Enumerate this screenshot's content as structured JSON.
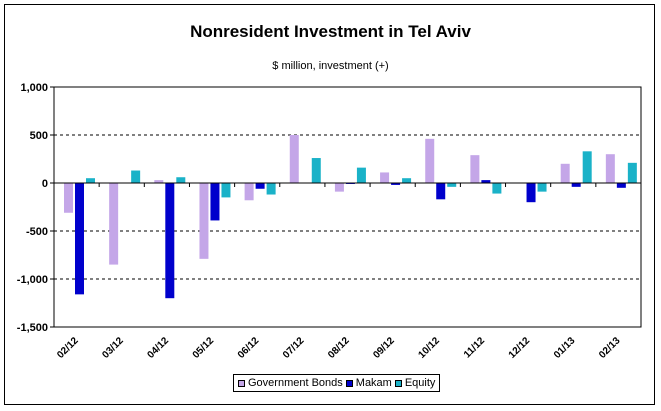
{
  "chart_data": {
    "type": "bar",
    "title": "Nonresident Investment in Tel Aviv",
    "subtitle": "$ million, investment (+)",
    "xlabel": "",
    "ylabel": "",
    "ylim": [
      -1500,
      1000
    ],
    "yticks": [
      1000,
      500,
      0,
      -500,
      -1000,
      -1500
    ],
    "ytick_labels": [
      "1,000",
      "500",
      "0",
      "-500",
      "-1,000",
      "-1,500"
    ],
    "grid": "dashed horizontal",
    "legend_position": "bottom-center",
    "categories": [
      "02/12",
      "03/12",
      "04/12",
      "05/12",
      "06/12",
      "07/12",
      "08/12",
      "09/12",
      "10/12",
      "11/12",
      "12/12",
      "01/13",
      "02/13"
    ],
    "series": [
      {
        "name": "Government Bonds",
        "color": "#c4a6e8",
        "values": [
          -310,
          -850,
          30,
          -790,
          -180,
          500,
          -90,
          110,
          460,
          290,
          0,
          200,
          300
        ]
      },
      {
        "name": "Makam",
        "color": "#0000cc",
        "values": [
          -1160,
          0,
          -1200,
          -390,
          -60,
          0,
          -10,
          -20,
          -170,
          30,
          -200,
          -40,
          -50
        ]
      },
      {
        "name": "Equity",
        "color": "#1ab2c8",
        "values": [
          50,
          130,
          60,
          -150,
          -120,
          260,
          160,
          50,
          -40,
          -110,
          -90,
          330,
          210
        ]
      }
    ]
  }
}
